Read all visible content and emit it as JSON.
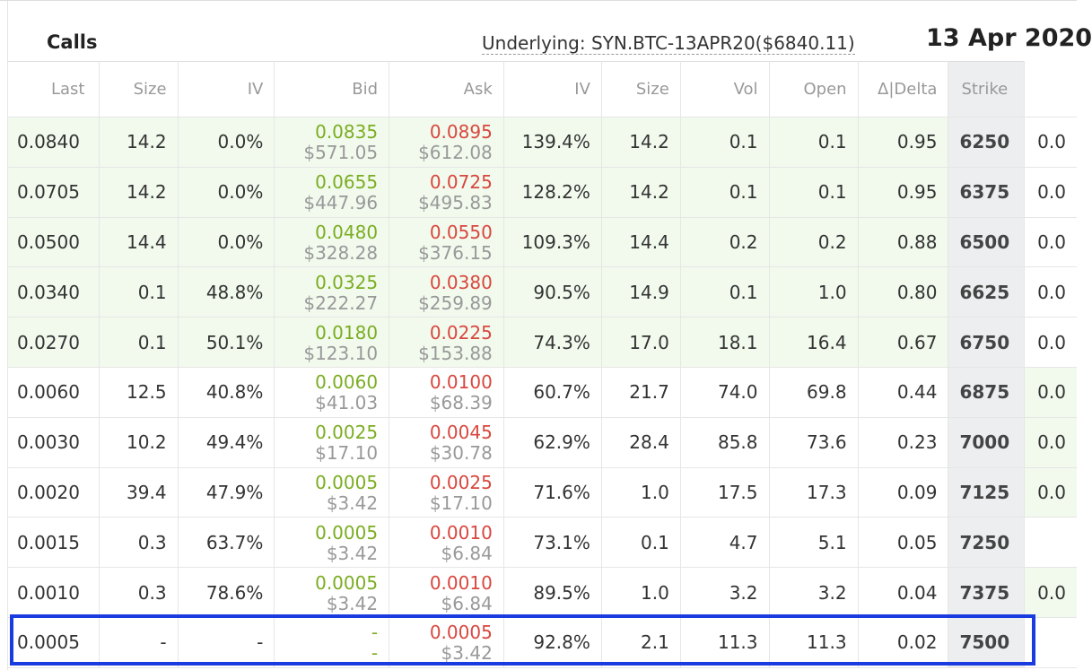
{
  "header": {
    "calls_title": "Calls",
    "underlying": "Underlying: SYN.BTC-13APR20($6840.11)",
    "date": "13 Apr 2020"
  },
  "columns": [
    "Last",
    "Size",
    "IV",
    "Bid",
    "Ask",
    "IV",
    "Size",
    "Vol",
    "Open",
    "Δ|Delta",
    "Strike"
  ],
  "rows": [
    {
      "last": "0.0840",
      "size": "14.2",
      "iv": "0.0%",
      "bid": "0.0835",
      "bid_usd": "$571.05",
      "ask": "0.0895",
      "ask_usd": "$612.08",
      "iv2": "139.4%",
      "size2": "14.2",
      "vol": "0.1",
      "open": "0.1",
      "delta": "0.95",
      "strike": "6250",
      "put": "0.0"
    },
    {
      "last": "0.0705",
      "size": "14.2",
      "iv": "0.0%",
      "bid": "0.0655",
      "bid_usd": "$447.96",
      "ask": "0.0725",
      "ask_usd": "$495.83",
      "iv2": "128.2%",
      "size2": "14.2",
      "vol": "0.1",
      "open": "0.1",
      "delta": "0.95",
      "strike": "6375",
      "put": "0.0"
    },
    {
      "last": "0.0500",
      "size": "14.4",
      "iv": "0.0%",
      "bid": "0.0480",
      "bid_usd": "$328.28",
      "ask": "0.0550",
      "ask_usd": "$376.15",
      "iv2": "109.3%",
      "size2": "14.4",
      "vol": "0.2",
      "open": "0.2",
      "delta": "0.88",
      "strike": "6500",
      "put": "0.0"
    },
    {
      "last": "0.0340",
      "size": "0.1",
      "iv": "48.8%",
      "bid": "0.0325",
      "bid_usd": "$222.27",
      "ask": "0.0380",
      "ask_usd": "$259.89",
      "iv2": "90.5%",
      "size2": "14.9",
      "vol": "0.1",
      "open": "1.0",
      "delta": "0.80",
      "strike": "6625",
      "put": "0.0"
    },
    {
      "last": "0.0270",
      "size": "0.1",
      "iv": "50.1%",
      "bid": "0.0180",
      "bid_usd": "$123.10",
      "ask": "0.0225",
      "ask_usd": "$153.88",
      "iv2": "74.3%",
      "size2": "17.0",
      "vol": "18.1",
      "open": "16.4",
      "delta": "0.67",
      "strike": "6750",
      "put": "0.0"
    },
    {
      "last": "0.0060",
      "size": "12.5",
      "iv": "40.8%",
      "bid": "0.0060",
      "bid_usd": "$41.03",
      "ask": "0.0100",
      "ask_usd": "$68.39",
      "iv2": "60.7%",
      "size2": "21.7",
      "vol": "74.0",
      "open": "69.8",
      "delta": "0.44",
      "strike": "6875",
      "put": "0.0"
    },
    {
      "last": "0.0030",
      "size": "10.2",
      "iv": "49.4%",
      "bid": "0.0025",
      "bid_usd": "$17.10",
      "ask": "0.0045",
      "ask_usd": "$30.78",
      "iv2": "62.9%",
      "size2": "28.4",
      "vol": "85.8",
      "open": "73.6",
      "delta": "0.23",
      "strike": "7000",
      "put": "0.0"
    },
    {
      "last": "0.0020",
      "size": "39.4",
      "iv": "47.9%",
      "bid": "0.0005",
      "bid_usd": "$3.42",
      "ask": "0.0025",
      "ask_usd": "$17.10",
      "iv2": "71.6%",
      "size2": "1.0",
      "vol": "17.5",
      "open": "17.3",
      "delta": "0.09",
      "strike": "7125",
      "put": "0.0"
    },
    {
      "last": "0.0015",
      "size": "0.3",
      "iv": "63.7%",
      "bid": "0.0005",
      "bid_usd": "$3.42",
      "ask": "0.0010",
      "ask_usd": "$6.84",
      "iv2": "73.1%",
      "size2": "0.1",
      "vol": "4.7",
      "open": "5.1",
      "delta": "0.05",
      "strike": "7250",
      "put": ""
    },
    {
      "last": "0.0010",
      "size": "0.3",
      "iv": "78.6%",
      "bid": "0.0005",
      "bid_usd": "$3.42",
      "ask": "0.0010",
      "ask_usd": "$6.84",
      "iv2": "89.5%",
      "size2": "1.0",
      "vol": "3.2",
      "open": "3.2",
      "delta": "0.04",
      "strike": "7375",
      "put": "0.0"
    },
    {
      "last": "0.0005",
      "size": "-",
      "iv": "-",
      "bid": "-",
      "bid_usd": "-",
      "ask": "0.0005",
      "ask_usd": "$3.42",
      "iv2": "92.8%",
      "size2": "2.1",
      "vol": "11.3",
      "open": "11.3",
      "delta": "0.02",
      "strike": "7500",
      "put": ""
    }
  ],
  "colors": {
    "bid": "#7bad22",
    "ask": "#d9473f",
    "itm_background": "#f1faed",
    "strike_background": "#eceeef",
    "highlight_border": "#1a3be0"
  }
}
